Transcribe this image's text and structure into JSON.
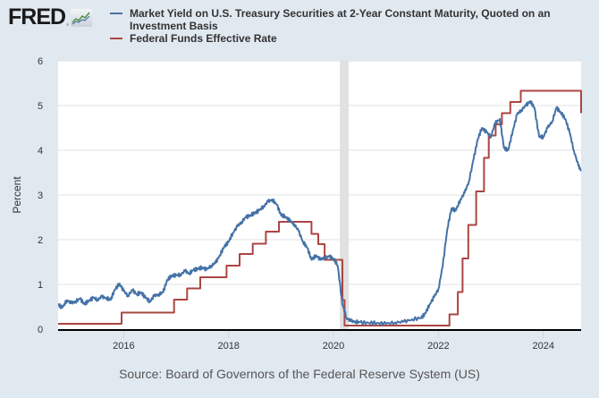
{
  "header": {
    "logo_text": "FRED",
    "logo_mark": "®",
    "logo_icon": "fred-chart-icon"
  },
  "legend": [
    {
      "label": "Market Yield on U.S. Treasury Securities at 2-Year Constant Maturity, Quoted on an Investment Basis",
      "color": "#4572a7"
    },
    {
      "label": "Federal Funds Effective Rate",
      "color": "#aa4643"
    }
  ],
  "source": "Source: Board of Governors of the Federal Reserve System (US)",
  "chart_data": {
    "type": "line",
    "title": "",
    "xlabel": "",
    "ylabel": "Percent",
    "xlim": [
      2014.75,
      2024.72
    ],
    "ylim": [
      0,
      6
    ],
    "yticks": [
      "0",
      "1",
      "2",
      "3",
      "4",
      "5",
      "6"
    ],
    "xticks": [
      "2016",
      "2018",
      "2020",
      "2022",
      "2024"
    ],
    "grid": true,
    "legend_position": "top",
    "recession_shading": [
      [
        2020.12,
        2020.29
      ]
    ],
    "series": [
      {
        "name": "Market Yield on U.S. Treasury Securities at 2-Year Constant Maturity, Quoted on an Investment Basis",
        "color": "#4572a7",
        "x": [
          2014.75,
          2014.83,
          2014.92,
          2015.0,
          2015.08,
          2015.17,
          2015.25,
          2015.33,
          2015.42,
          2015.5,
          2015.58,
          2015.67,
          2015.75,
          2015.83,
          2015.92,
          2016.0,
          2016.08,
          2016.17,
          2016.25,
          2016.33,
          2016.42,
          2016.5,
          2016.58,
          2016.67,
          2016.75,
          2016.83,
          2016.92,
          2017.0,
          2017.08,
          2017.17,
          2017.25,
          2017.33,
          2017.42,
          2017.5,
          2017.58,
          2017.67,
          2017.75,
          2017.83,
          2017.92,
          2018.0,
          2018.08,
          2018.17,
          2018.25,
          2018.33,
          2018.42,
          2018.5,
          2018.58,
          2018.67,
          2018.75,
          2018.83,
          2018.92,
          2019.0,
          2019.08,
          2019.17,
          2019.25,
          2019.33,
          2019.42,
          2019.5,
          2019.58,
          2019.67,
          2019.75,
          2019.83,
          2019.92,
          2020.0,
          2020.08,
          2020.17,
          2020.25,
          2020.33,
          2020.42,
          2020.5,
          2020.67,
          2020.83,
          2021.0,
          2021.17,
          2021.33,
          2021.5,
          2021.67,
          2021.75,
          2021.83,
          2021.92,
          2022.0,
          2022.08,
          2022.17,
          2022.25,
          2022.33,
          2022.42,
          2022.5,
          2022.58,
          2022.67,
          2022.75,
          2022.83,
          2022.92,
          2023.0,
          2023.08,
          2023.17,
          2023.25,
          2023.33,
          2023.42,
          2023.5,
          2023.58,
          2023.67,
          2023.75,
          2023.83,
          2023.92,
          2024.0,
          2024.08,
          2024.17,
          2024.25,
          2024.33,
          2024.42,
          2024.5,
          2024.58,
          2024.67,
          2024.72
        ],
        "values": [
          0.55,
          0.48,
          0.65,
          0.58,
          0.62,
          0.68,
          0.56,
          0.63,
          0.7,
          0.66,
          0.72,
          0.7,
          0.65,
          0.88,
          1.02,
          0.85,
          0.75,
          0.87,
          0.78,
          0.82,
          0.7,
          0.62,
          0.74,
          0.78,
          0.82,
          1.1,
          1.2,
          1.2,
          1.22,
          1.3,
          1.25,
          1.32,
          1.35,
          1.38,
          1.33,
          1.42,
          1.48,
          1.65,
          1.85,
          1.95,
          2.15,
          2.3,
          2.4,
          2.5,
          2.55,
          2.6,
          2.65,
          2.75,
          2.85,
          2.9,
          2.78,
          2.55,
          2.52,
          2.42,
          2.35,
          2.2,
          1.95,
          1.82,
          1.55,
          1.65,
          1.55,
          1.6,
          1.62,
          1.58,
          1.42,
          0.55,
          0.25,
          0.18,
          0.17,
          0.15,
          0.14,
          0.14,
          0.12,
          0.15,
          0.16,
          0.22,
          0.25,
          0.35,
          0.55,
          0.72,
          0.9,
          1.4,
          2.25,
          2.7,
          2.65,
          2.9,
          3.05,
          3.3,
          3.8,
          4.25,
          4.5,
          4.4,
          4.3,
          4.6,
          4.7,
          4.05,
          4.0,
          4.45,
          4.8,
          4.9,
          5.0,
          5.1,
          4.95,
          4.3,
          4.3,
          4.5,
          4.65,
          4.95,
          4.85,
          4.7,
          4.4,
          4.0,
          3.65,
          3.55
        ]
      },
      {
        "name": "Federal Funds Effective Rate",
        "color": "#aa4643",
        "step": true,
        "x": [
          2014.75,
          2015.96,
          2016.96,
          2017.21,
          2017.46,
          2017.96,
          2018.21,
          2018.46,
          2018.71,
          2018.96,
          2019.58,
          2019.71,
          2019.83,
          2020.17,
          2020.21,
          2022.21,
          2022.37,
          2022.46,
          2022.57,
          2022.72,
          2022.87,
          2022.96,
          2023.09,
          2023.21,
          2023.37,
          2023.57,
          2024.72
        ],
        "values": [
          0.12,
          0.37,
          0.66,
          0.91,
          1.16,
          1.42,
          1.68,
          1.91,
          2.18,
          2.4,
          2.13,
          1.9,
          1.55,
          0.65,
          0.08,
          0.33,
          0.83,
          1.58,
          2.33,
          3.08,
          3.83,
          4.33,
          4.58,
          4.83,
          5.08,
          5.33,
          4.83
        ]
      }
    ]
  }
}
